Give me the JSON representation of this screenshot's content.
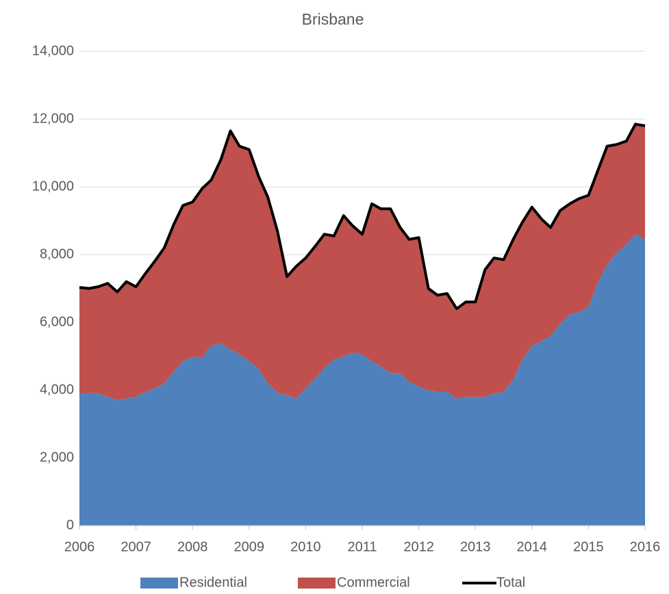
{
  "chart_data": {
    "type": "stacked_area",
    "title": "Brisbane",
    "x": [
      2006,
      2006.17,
      2006.33,
      2006.5,
      2006.67,
      2006.83,
      2007,
      2007.17,
      2007.33,
      2007.5,
      2007.67,
      2007.83,
      2008,
      2008.17,
      2008.33,
      2008.5,
      2008.67,
      2008.83,
      2009,
      2009.17,
      2009.33,
      2009.5,
      2009.67,
      2009.83,
      2010,
      2010.17,
      2010.33,
      2010.5,
      2010.67,
      2010.83,
      2011,
      2011.17,
      2011.33,
      2011.5,
      2011.67,
      2011.83,
      2012,
      2012.17,
      2012.33,
      2012.5,
      2012.67,
      2012.83,
      2013,
      2013.17,
      2013.33,
      2013.5,
      2013.67,
      2013.83,
      2014,
      2014.17,
      2014.33,
      2014.5,
      2014.67,
      2014.83,
      2015,
      2015.17,
      2015.33,
      2015.5,
      2015.67,
      2015.83,
      2016
    ],
    "series": [
      {
        "name": "Residential",
        "color": "#4f81bd",
        "values": [
          3880,
          3920,
          3900,
          3800,
          3700,
          3750,
          3800,
          3950,
          4050,
          4200,
          4550,
          4850,
          4980,
          4950,
          5320,
          5380,
          5200,
          5050,
          4850,
          4620,
          4200,
          3920,
          3850,
          3750,
          4050,
          4350,
          4650,
          4900,
          5000,
          5100,
          5050,
          4850,
          4700,
          4500,
          4500,
          4250,
          4100,
          4000,
          3950,
          3950,
          3750,
          3800,
          3800,
          3800,
          3900,
          3950,
          4300,
          4900,
          5300,
          5450,
          5600,
          5950,
          6250,
          6300,
          6450,
          7200,
          7700,
          8050,
          8300,
          8600,
          8450
        ]
      },
      {
        "name": "Commercial",
        "color": "#c0504d",
        "values": [
          3150,
          3080,
          3150,
          3350,
          3200,
          3450,
          3250,
          3500,
          3750,
          4000,
          4350,
          4600,
          4570,
          5000,
          4880,
          5420,
          6450,
          6150,
          6250,
          5680,
          5500,
          4780,
          3500,
          3900,
          3850,
          3900,
          3950,
          3650,
          4150,
          3750,
          3550,
          4650,
          4650,
          4850,
          4300,
          4200,
          4400,
          3000,
          2850,
          2900,
          2650,
          2800,
          2800,
          3750,
          4000,
          3900,
          4150,
          4050,
          4100,
          3600,
          3200,
          3350,
          3250,
          3350,
          3300,
          3300,
          3500,
          3200,
          3050,
          3250,
          3350
        ]
      },
      {
        "name": "Total",
        "color": "#000000",
        "line": true,
        "values": [
          7030,
          7000,
          7050,
          7150,
          6900,
          7200,
          7050,
          7450,
          7800,
          8200,
          8900,
          9450,
          9550,
          9950,
          10200,
          10800,
          11650,
          11200,
          11100,
          10300,
          9700,
          8700,
          7350,
          7650,
          7900,
          8250,
          8600,
          8550,
          9150,
          8850,
          8600,
          9500,
          9350,
          9350,
          8800,
          8450,
          8500,
          7000,
          6800,
          6850,
          6400,
          6600,
          6600,
          7550,
          7900,
          7850,
          8450,
          8950,
          9400,
          9050,
          8800,
          9300,
          9500,
          9650,
          9750,
          10500,
          11200,
          11250,
          11350,
          11850,
          11800
        ]
      }
    ],
    "xlim": [
      2006,
      2016
    ],
    "xticks": [
      2006,
      2007,
      2008,
      2009,
      2010,
      2011,
      2012,
      2013,
      2014,
      2015,
      2016
    ],
    "ylim": [
      0,
      14000
    ],
    "yticks": [
      0,
      {
        "value": 2000,
        "label": "2,000"
      },
      {
        "value": 4000,
        "label": "4,000"
      },
      {
        "value": 6000,
        "label": "6,000"
      },
      {
        "value": 8000,
        "label": "8,000"
      },
      {
        "value": 10000,
        "label": "10,000"
      },
      {
        "value": 12000,
        "label": "12,000"
      },
      {
        "value": 14000,
        "label": "14,000"
      }
    ],
    "grid": true,
    "legend": "bottom"
  }
}
